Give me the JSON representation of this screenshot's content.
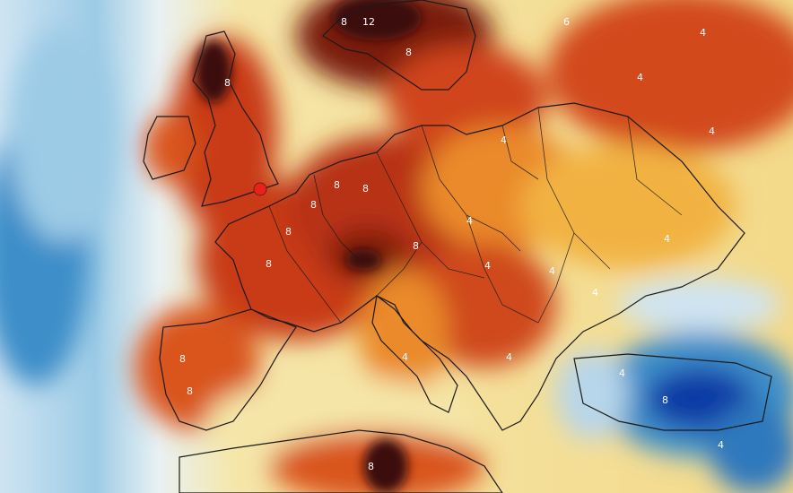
{
  "map": {
    "colors": {
      "cold_deep": "#0b3aa6",
      "cold": "#3d8ec9",
      "cool": "#9ccbe6",
      "neutral": "#f5e6a8",
      "warm": "#f2b243",
      "hot": "#e8701f",
      "very_hot": "#c83a17",
      "extreme": "#7a1b10",
      "darkest": "#3a0f0c",
      "coastline": "#1a1a1a",
      "marker": "#e8221b"
    },
    "contour_labels": [
      {
        "text": "8"
      },
      {
        "text": "12"
      },
      {
        "text": "8"
      },
      {
        "text": "6"
      },
      {
        "text": "4"
      },
      {
        "text": "4"
      },
      {
        "text": "8"
      },
      {
        "text": "8"
      },
      {
        "text": "8"
      },
      {
        "text": "4"
      },
      {
        "text": "4"
      },
      {
        "text": "8"
      },
      {
        "text": "8"
      },
      {
        "text": "4"
      },
      {
        "text": "4"
      },
      {
        "text": "8"
      },
      {
        "text": "4"
      },
      {
        "text": "4"
      },
      {
        "text": "8"
      },
      {
        "text": "8"
      },
      {
        "text": "4"
      },
      {
        "text": "4"
      },
      {
        "text": "8"
      },
      {
        "text": "8"
      },
      {
        "text": "4"
      },
      {
        "text": "8"
      },
      {
        "text": "4"
      },
      {
        "text": "4"
      }
    ],
    "marker": {
      "icon": "red-dot-marker"
    }
  }
}
